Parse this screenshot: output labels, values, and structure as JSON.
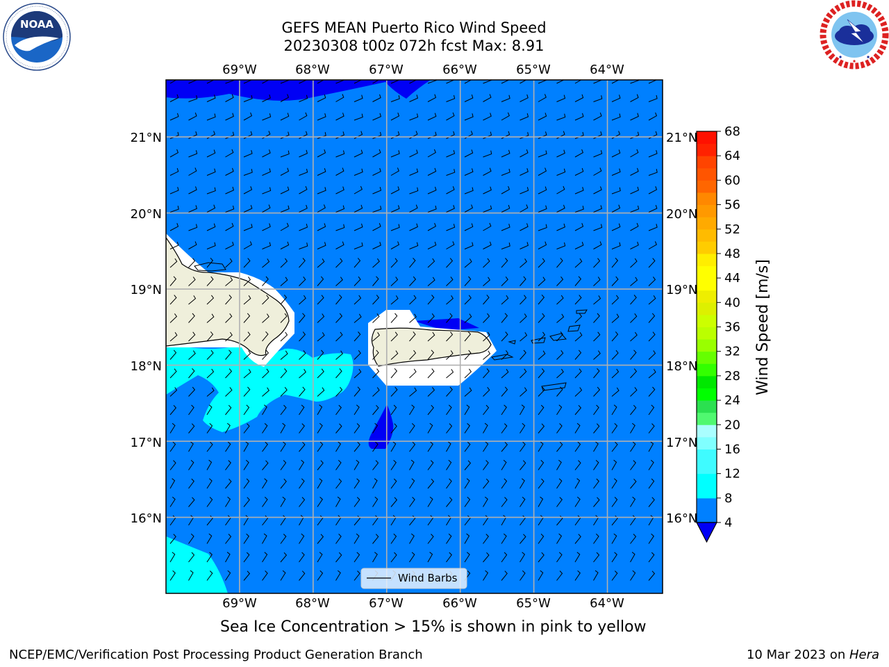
{
  "title": {
    "line1": "GEFS MEAN Puerto Rico Wind Speed",
    "line2": "20230308 t00z 072h fcst   Max: 8.91"
  },
  "logos": {
    "left": {
      "name": "NOAA",
      "text": "NOAA",
      "ring_text": "NATIONAL OCEANIC AND ATMOSPHERIC ADMINISTRATION · U.S. DEPARTMENT OF COMMERCE"
    },
    "right": {
      "name": "National Weather Service",
      "ring_text": "NATIONAL WEATHER SERVICE"
    }
  },
  "map": {
    "projection": "PlateCarree",
    "extent_lon": [
      -70.0,
      -63.25
    ],
    "extent_lat": [
      15.0,
      21.75
    ],
    "lon_ticks": [
      "69°W",
      "68°W",
      "67°W",
      "66°W",
      "65°W",
      "64°W"
    ],
    "lat_ticks": [
      "21°N",
      "20°N",
      "19°N",
      "18°N",
      "17°N",
      "16°N"
    ],
    "gridlines": true,
    "land_color": "#efefdb",
    "ocean_fill_color": "#0080ff",
    "legend": {
      "label": "Wind Barbs",
      "position": "lower-center"
    }
  },
  "colorbar": {
    "label": "Wind Speed [m/s]",
    "tick_labels": [
      "4",
      "8",
      "12",
      "16",
      "20",
      "24",
      "28",
      "32",
      "36",
      "40",
      "44",
      "48",
      "52",
      "56",
      "60",
      "64",
      "68"
    ],
    "levels": [
      4,
      6,
      8,
      10,
      12,
      14,
      16,
      18,
      20,
      22,
      24,
      26,
      28,
      30,
      32,
      34,
      36,
      38,
      40,
      42,
      44,
      46,
      48,
      50,
      52,
      54,
      56,
      58,
      60,
      62,
      64,
      66,
      68
    ],
    "colors": [
      "#0080ff",
      "#0080ff",
      "#00ffff",
      "#00ffff",
      "#3ffbff",
      "#3ffbff",
      "#80ffff",
      "#aafeff",
      "#50f870",
      "#2be050",
      "#00ff00",
      "#00e800",
      "#33ff00",
      "#66ff00",
      "#99ff00",
      "#bbff00",
      "#ccff00",
      "#ddf000",
      "#eeee00",
      "#ffff00",
      "#ffff00",
      "#ffee00",
      "#ffcc00",
      "#ffbb00",
      "#ffaa00",
      "#ff9900",
      "#ff8800",
      "#ff6600",
      "#ff5500",
      "#ff4400",
      "#ff2200",
      "#ff1100"
    ],
    "under_color": "#0000f5"
  },
  "footnote": "Sea Ice Concentration > 15% is shown in pink to yellow",
  "credit_left": "NCEP/EMC/Verification Post Processing Product Generation Branch",
  "credit_right_date": "10 Mar 2023 on ",
  "credit_right_host": "Hera"
}
